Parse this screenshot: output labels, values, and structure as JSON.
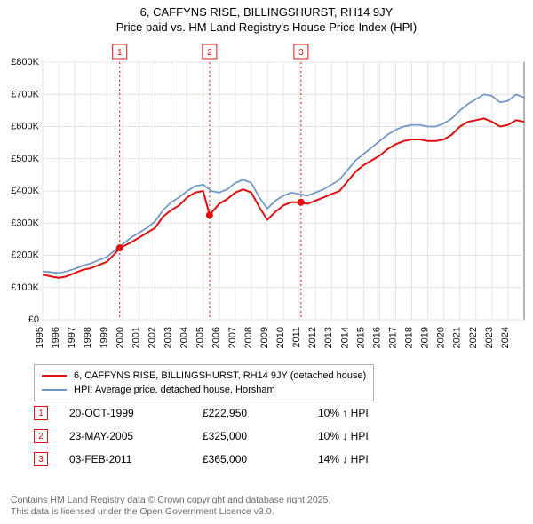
{
  "title_line1": "6, CAFFYNS RISE, BILLINGSHURST, RH14 9JY",
  "title_line2": "Price paid vs. HM Land Registry's House Price Index (HPI)",
  "chart": {
    "type": "line",
    "plot_bg": "#ffffff",
    "grid_color": "#e4e4e4",
    "axis_color": "#6d6d6d",
    "x_label_rotation": -90,
    "x_years": [
      1995,
      1996,
      1997,
      1998,
      1999,
      2000,
      2001,
      2002,
      2003,
      2004,
      2005,
      2006,
      2007,
      2008,
      2009,
      2010,
      2011,
      2012,
      2013,
      2014,
      2015,
      2016,
      2017,
      2018,
      2019,
      2020,
      2021,
      2022,
      2023,
      2024
    ],
    "y_ticks": [
      0,
      100000,
      200000,
      300000,
      400000,
      500000,
      600000,
      700000,
      800000
    ],
    "y_tick_labels": [
      "£0",
      "£100K",
      "£200K",
      "£300K",
      "£400K",
      "£500K",
      "£600K",
      "£700K",
      "£800K"
    ],
    "ylim": [
      0,
      800000
    ],
    "xlim": [
      1995,
      2025
    ],
    "series": [
      {
        "name": "price_paid",
        "color": "#e01010",
        "width": 2.0,
        "points": [
          [
            1995,
            140000
          ],
          [
            1995.5,
            135000
          ],
          [
            1996,
            130000
          ],
          [
            1996.5,
            135000
          ],
          [
            1997,
            145000
          ],
          [
            1997.5,
            155000
          ],
          [
            1998,
            160000
          ],
          [
            1998.5,
            170000
          ],
          [
            1999,
            180000
          ],
          [
            1999.5,
            205000
          ],
          [
            1999.8,
            222950
          ],
          [
            2000.5,
            240000
          ],
          [
            2001,
            255000
          ],
          [
            2001.5,
            270000
          ],
          [
            2002,
            285000
          ],
          [
            2002.5,
            320000
          ],
          [
            2003,
            340000
          ],
          [
            2003.5,
            355000
          ],
          [
            2004,
            380000
          ],
          [
            2004.5,
            395000
          ],
          [
            2005,
            400000
          ],
          [
            2005.4,
            325000
          ],
          [
            2006,
            360000
          ],
          [
            2006.5,
            375000
          ],
          [
            2007,
            395000
          ],
          [
            2007.5,
            405000
          ],
          [
            2008,
            395000
          ],
          [
            2008.5,
            350000
          ],
          [
            2009,
            310000
          ],
          [
            2009.5,
            335000
          ],
          [
            2010,
            355000
          ],
          [
            2010.5,
            365000
          ],
          [
            2011.1,
            365000
          ],
          [
            2011.5,
            360000
          ],
          [
            2012,
            370000
          ],
          [
            2012.5,
            380000
          ],
          [
            2013,
            390000
          ],
          [
            2013.5,
            400000
          ],
          [
            2014,
            430000
          ],
          [
            2014.5,
            460000
          ],
          [
            2015,
            480000
          ],
          [
            2015.5,
            495000
          ],
          [
            2016,
            510000
          ],
          [
            2016.5,
            530000
          ],
          [
            2017,
            545000
          ],
          [
            2017.5,
            555000
          ],
          [
            2018,
            560000
          ],
          [
            2018.5,
            560000
          ],
          [
            2019,
            555000
          ],
          [
            2019.5,
            555000
          ],
          [
            2020,
            560000
          ],
          [
            2020.5,
            575000
          ],
          [
            2021,
            600000
          ],
          [
            2021.5,
            615000
          ],
          [
            2022,
            620000
          ],
          [
            2022.5,
            625000
          ],
          [
            2023,
            615000
          ],
          [
            2023.5,
            600000
          ],
          [
            2024,
            605000
          ],
          [
            2024.5,
            620000
          ],
          [
            2025,
            615000
          ]
        ]
      },
      {
        "name": "hpi",
        "color": "#6e94c8",
        "width": 1.7,
        "points": [
          [
            1995,
            150000
          ],
          [
            1995.5,
            148000
          ],
          [
            1996,
            145000
          ],
          [
            1996.5,
            150000
          ],
          [
            1997,
            158000
          ],
          [
            1997.5,
            168000
          ],
          [
            1998,
            175000
          ],
          [
            1998.5,
            185000
          ],
          [
            1999,
            195000
          ],
          [
            1999.5,
            215000
          ],
          [
            2000,
            235000
          ],
          [
            2000.5,
            255000
          ],
          [
            2001,
            270000
          ],
          [
            2001.5,
            285000
          ],
          [
            2002,
            305000
          ],
          [
            2002.5,
            340000
          ],
          [
            2003,
            365000
          ],
          [
            2003.5,
            380000
          ],
          [
            2004,
            400000
          ],
          [
            2004.5,
            415000
          ],
          [
            2005,
            420000
          ],
          [
            2005.5,
            400000
          ],
          [
            2006,
            395000
          ],
          [
            2006.5,
            405000
          ],
          [
            2007,
            425000
          ],
          [
            2007.5,
            435000
          ],
          [
            2008,
            425000
          ],
          [
            2008.5,
            380000
          ],
          [
            2009,
            345000
          ],
          [
            2009.5,
            370000
          ],
          [
            2010,
            385000
          ],
          [
            2010.5,
            395000
          ],
          [
            2011,
            390000
          ],
          [
            2011.5,
            385000
          ],
          [
            2012,
            395000
          ],
          [
            2012.5,
            405000
          ],
          [
            2013,
            420000
          ],
          [
            2013.5,
            435000
          ],
          [
            2014,
            465000
          ],
          [
            2014.5,
            495000
          ],
          [
            2015,
            515000
          ],
          [
            2015.5,
            535000
          ],
          [
            2016,
            555000
          ],
          [
            2016.5,
            575000
          ],
          [
            2017,
            590000
          ],
          [
            2017.5,
            600000
          ],
          [
            2018,
            605000
          ],
          [
            2018.5,
            605000
          ],
          [
            2019,
            600000
          ],
          [
            2019.5,
            600000
          ],
          [
            2020,
            610000
          ],
          [
            2020.5,
            625000
          ],
          [
            2021,
            650000
          ],
          [
            2021.5,
            670000
          ],
          [
            2022,
            685000
          ],
          [
            2022.5,
            700000
          ],
          [
            2023,
            695000
          ],
          [
            2023.5,
            675000
          ],
          [
            2024,
            680000
          ],
          [
            2024.5,
            700000
          ],
          [
            2025,
            690000
          ]
        ]
      }
    ],
    "sale_points": [
      {
        "x": 1999.8,
        "y": 222950,
        "color": "#e01010",
        "r": 4
      },
      {
        "x": 2005.4,
        "y": 325000,
        "color": "#e01010",
        "r": 4
      },
      {
        "x": 2011.1,
        "y": 365000,
        "color": "#e01010",
        "r": 4
      }
    ],
    "event_markers": [
      {
        "n": "1",
        "x": 1999.8
      },
      {
        "n": "2",
        "x": 2005.4
      },
      {
        "n": "3",
        "x": 2011.1
      }
    ],
    "marker_line_color": "#e01010",
    "marker_line_dash": "2,3",
    "marker_box_border": "#e01010",
    "marker_box_bg": "#ffffff",
    "marker_box_text_color": "#e01010"
  },
  "legend": {
    "items": [
      {
        "color": "#e01010",
        "label": "6, CAFFYNS RISE, BILLINGSHURST, RH14 9JY (detached house)"
      },
      {
        "color": "#6e94c8",
        "label": "HPI: Average price, detached house, Horsham"
      }
    ]
  },
  "events": [
    {
      "n": "1",
      "date": "20-OCT-1999",
      "price": "£222,950",
      "delta": "10% ↑ HPI"
    },
    {
      "n": "2",
      "date": "23-MAY-2005",
      "price": "£325,000",
      "delta": "10% ↓ HPI"
    },
    {
      "n": "3",
      "date": "03-FEB-2011",
      "price": "£365,000",
      "delta": "14% ↓ HPI"
    }
  ],
  "footer_line1": "Contains HM Land Registry data © Crown copyright and database right 2025.",
  "footer_line2": "This data is licensed under the Open Government Licence v3.0."
}
